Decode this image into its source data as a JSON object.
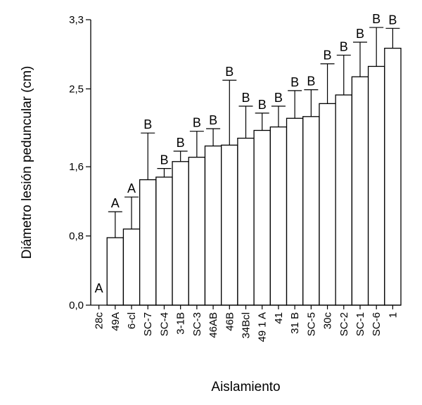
{
  "chart_data": {
    "type": "bar",
    "title": "",
    "xlabel": "Aislamiento",
    "ylabel": "Diámetro lesión peduncular (cm)",
    "ylim": [
      0,
      3.3
    ],
    "yticks": [
      0.0,
      0.8,
      1.6,
      2.5,
      3.3
    ],
    "ytick_labels": [
      "0,0",
      "0,8",
      "1,6",
      "2,5",
      "3,3"
    ],
    "grid": false,
    "legend": "none",
    "categories": [
      "28c",
      "49A",
      "6-cl",
      "SC-7",
      "SC-4",
      "3-1B",
      "SC-3",
      "46AB",
      "46B",
      "34Bcl",
      "49 1 A",
      "41",
      "31 B",
      "SC-5",
      "30c",
      "SC-2",
      "SC-1",
      "SC-6",
      "1"
    ],
    "values": [
      0.0,
      0.78,
      0.88,
      1.45,
      1.48,
      1.66,
      1.71,
      1.84,
      1.85,
      1.93,
      2.02,
      2.06,
      2.16,
      2.18,
      2.33,
      2.43,
      2.64,
      2.76,
      2.97
    ],
    "errors": [
      0.0,
      0.3,
      0.37,
      0.54,
      0.1,
      0.12,
      0.3,
      0.2,
      0.75,
      0.37,
      0.2,
      0.24,
      0.32,
      0.31,
      0.46,
      0.46,
      0.4,
      0.45,
      0.23
    ],
    "group_labels": [
      "A",
      "A",
      "A",
      "B",
      "B",
      "B",
      "B",
      "B",
      "B",
      "B",
      "B",
      "B",
      "B",
      "B",
      "B",
      "B",
      "B",
      "B",
      "B"
    ]
  }
}
